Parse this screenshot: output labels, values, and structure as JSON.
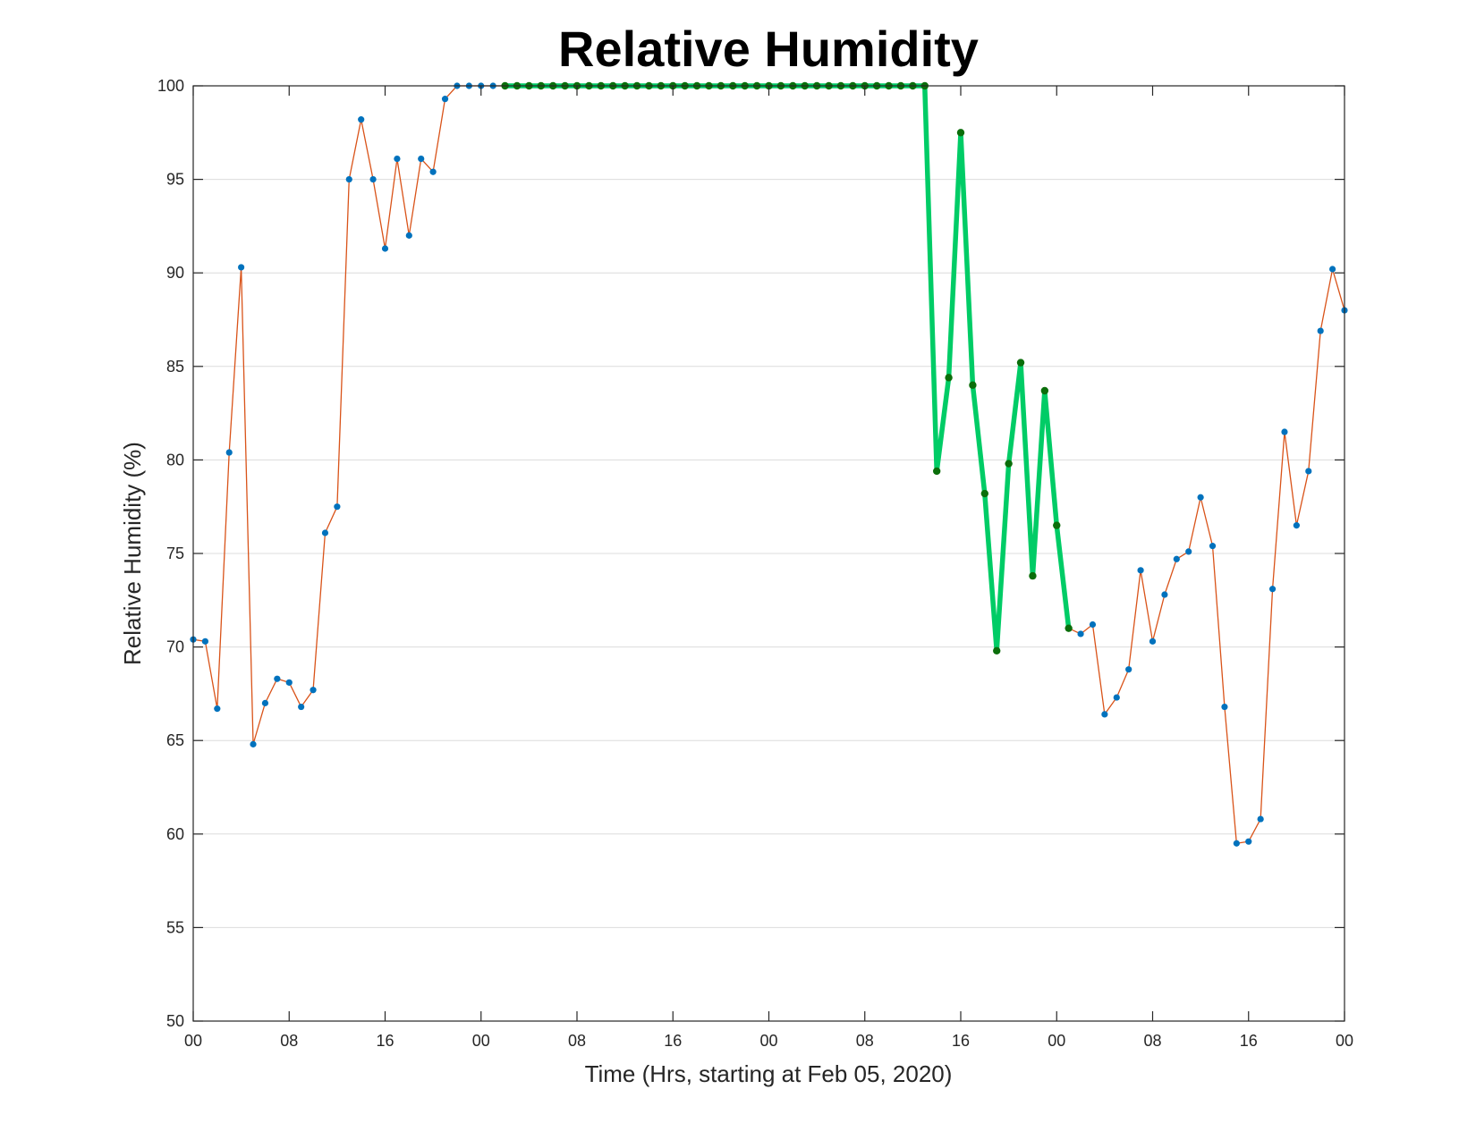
{
  "chart_data": {
    "type": "line",
    "title": "Relative Humidity",
    "xlabel": "Time (Hrs, starting at Feb 05, 2020)",
    "ylabel": "Relative Humidity (%)",
    "x_unit": "hours",
    "xlim": [
      0,
      96
    ],
    "ylim": [
      50,
      100
    ],
    "yticks": [
      50,
      55,
      60,
      65,
      70,
      75,
      80,
      85,
      90,
      95,
      100
    ],
    "xticks": [
      0,
      8,
      16,
      24,
      32,
      40,
      48,
      56,
      64,
      72,
      80,
      88,
      96
    ],
    "xtick_labels": [
      "00",
      "08",
      "16",
      "00",
      "08",
      "16",
      "00",
      "08",
      "16",
      "00",
      "08",
      "16",
      "00"
    ],
    "grid": "horizontal",
    "legend": "none",
    "series": [
      {
        "role": "full-record",
        "line_color": "#D95319",
        "marker_color": "#0072BD",
        "x": [
          0,
          1,
          2,
          3,
          4,
          5,
          6,
          7,
          8,
          9,
          10,
          11,
          12,
          13,
          14,
          15,
          16,
          17,
          18,
          19,
          20,
          21,
          22,
          23,
          24,
          25,
          26,
          27,
          28,
          29,
          30,
          31,
          32,
          33,
          34,
          35,
          36,
          37,
          38,
          39,
          40,
          41,
          42,
          43,
          44,
          45,
          46,
          47,
          48,
          49,
          50,
          51,
          52,
          53,
          54,
          55,
          56,
          57,
          58,
          59,
          60,
          61,
          62,
          63,
          64,
          65,
          66,
          67,
          68,
          69,
          70,
          71,
          72,
          73,
          74,
          75,
          76,
          77,
          78,
          79,
          80,
          81,
          82,
          83,
          84,
          85,
          86,
          87,
          88,
          89,
          90,
          91,
          92,
          93,
          94,
          95,
          96
        ],
        "y": [
          70.4,
          70.3,
          66.7,
          80.4,
          90.3,
          64.8,
          67.0,
          68.3,
          68.1,
          66.8,
          67.7,
          76.1,
          77.5,
          95.0,
          98.2,
          95.0,
          91.3,
          96.1,
          92.0,
          96.1,
          95.4,
          99.3,
          100,
          100,
          100,
          100,
          100,
          100,
          100,
          100,
          100,
          100,
          100,
          100,
          100,
          100,
          100,
          100,
          100,
          100,
          100,
          100,
          100,
          100,
          100,
          100,
          100,
          100,
          100,
          100,
          100,
          100,
          100,
          100,
          100,
          100,
          100,
          100,
          100,
          100,
          100,
          100,
          79.4,
          84.4,
          97.5,
          84.0,
          78.2,
          69.8,
          79.8,
          85.2,
          73.8,
          83.7,
          76.5,
          71.0,
          70.7,
          71.2,
          66.4,
          67.3,
          68.8,
          74.1,
          70.3,
          72.8,
          74.7,
          75.1,
          78.0,
          75.4,
          66.8,
          59.5,
          59.6,
          60.8,
          73.1,
          81.5,
          76.5,
          79.4,
          86.9,
          90.2,
          88.0
        ]
      },
      {
        "role": "highlighted-segment",
        "line_color": "#00CC66",
        "marker_color": "#0B6E0B",
        "x": [
          26,
          27,
          28,
          29,
          30,
          31,
          32,
          33,
          34,
          35,
          36,
          37,
          38,
          39,
          40,
          41,
          42,
          43,
          44,
          45,
          46,
          47,
          48,
          49,
          50,
          51,
          52,
          53,
          54,
          55,
          56,
          57,
          58,
          59,
          60,
          61,
          62,
          63,
          64,
          65,
          66,
          67,
          68,
          69,
          70,
          71,
          72,
          73
        ],
        "y": [
          100,
          100,
          100,
          100,
          100,
          100,
          100,
          100,
          100,
          100,
          100,
          100,
          100,
          100,
          100,
          100,
          100,
          100,
          100,
          100,
          100,
          100,
          100,
          100,
          100,
          100,
          100,
          100,
          100,
          100,
          100,
          100,
          100,
          100,
          100,
          100,
          79.4,
          84.4,
          97.5,
          84.0,
          78.2,
          69.8,
          79.8,
          85.2,
          73.8,
          83.7,
          76.5,
          71.0
        ]
      }
    ]
  }
}
